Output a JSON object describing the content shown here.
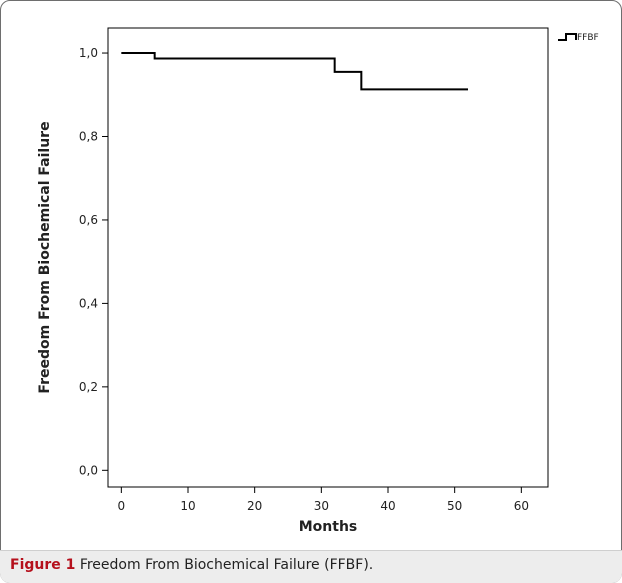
{
  "chart_data": {
    "type": "line",
    "step": true,
    "title": "",
    "xlabel": "Months",
    "ylabel": "Freedom From Biochemical Failure",
    "xlim": [
      -2,
      64
    ],
    "ylim": [
      -0.04,
      1.06
    ],
    "x_ticks": [
      0,
      10,
      20,
      30,
      40,
      50,
      60
    ],
    "y_ticks": [
      0.0,
      0.2,
      0.4,
      0.6,
      0.8,
      1.0
    ],
    "y_tick_labels": [
      "0,0",
      "0,2",
      "0,4",
      "0,6",
      "0,8",
      "1,0"
    ],
    "grid": false,
    "legend_position": "top-right",
    "series": [
      {
        "name": "FFBF",
        "color": "#000000",
        "x": [
          0,
          5,
          32,
          36,
          52
        ],
        "y": [
          1.0,
          0.987,
          0.955,
          0.913,
          0.913
        ]
      }
    ]
  },
  "caption": {
    "lead": "Figure 1",
    "text": " Freedom From Biochemical Failure (FFBF)."
  }
}
